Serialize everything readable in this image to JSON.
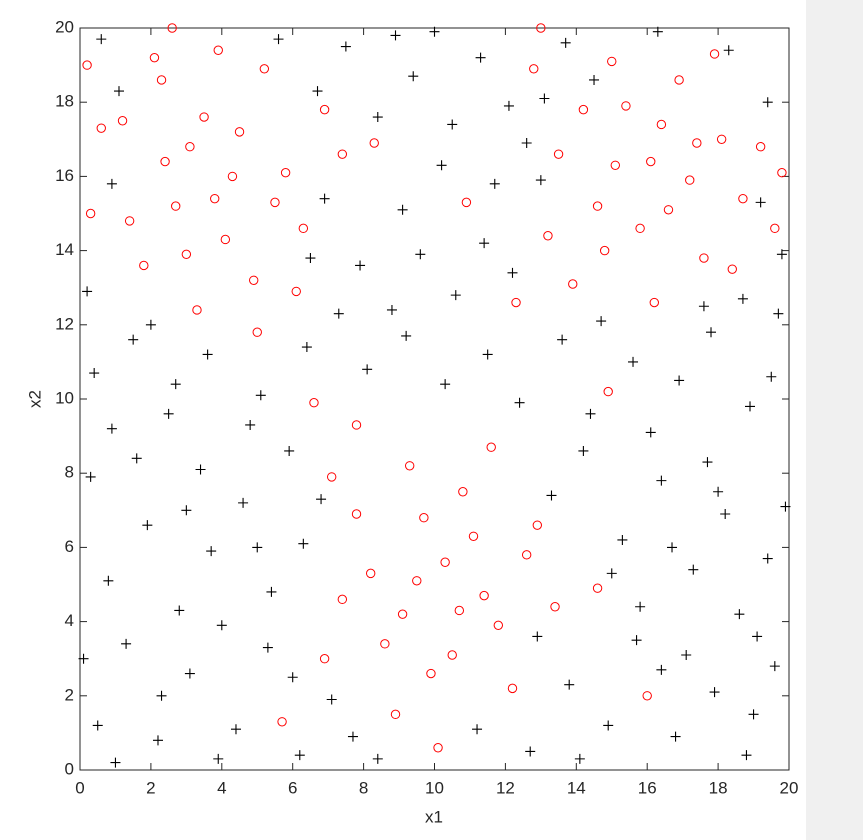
{
  "chart_data": {
    "type": "scatter",
    "xlabel": "x1",
    "ylabel": "x2",
    "xlim": [
      0,
      20
    ],
    "ylim": [
      0,
      20
    ],
    "xticks": [
      0,
      2,
      4,
      6,
      8,
      10,
      12,
      14,
      16,
      18,
      20
    ],
    "yticks": [
      0,
      2,
      4,
      6,
      8,
      10,
      12,
      14,
      16,
      18,
      20
    ],
    "grid": false,
    "series": [
      {
        "color": "#000000",
        "marker": "plus",
        "x": [
          0.5,
          1.3,
          2.2,
          3.1,
          4.4,
          5.3,
          6.2,
          7.1,
          8.4,
          11.2,
          12.7,
          13.8,
          14.9,
          15.7,
          16.8,
          17.9,
          18.8,
          19.6,
          0.8,
          1.9,
          2.8,
          3.7,
          4.6,
          5.4,
          6.3,
          0.3,
          1.6,
          2.5,
          3.4,
          4.8,
          5.9,
          6.8,
          13.3,
          14.2,
          15.3,
          16.4,
          17.3,
          18.2,
          19.4,
          15.8,
          17.1,
          18.6,
          19.9,
          14.4,
          16.1,
          17.7,
          18.9,
          19.5,
          0.4,
          1.5,
          2.7,
          3.6,
          5.1,
          6.4,
          7.3,
          8.1,
          9.2,
          10.3,
          11.5,
          12.4,
          13.6,
          14.7,
          15.6,
          16.9,
          17.8,
          18.7,
          19.7,
          7.9,
          8.8,
          9.6,
          10.6,
          11.4,
          12.2,
          9.1,
          10.2,
          11.7,
          12.6,
          8.4,
          9.4,
          10.5,
          11.3,
          12.1,
          7.5,
          6.7,
          8.9,
          10.0,
          0.2,
          0.9,
          1.1,
          0.6,
          2.0,
          5.6,
          6.5,
          6.9,
          13.1,
          13.7,
          14.5,
          16.3,
          18.3,
          19.4,
          19.8,
          19.2,
          17.6,
          13.0,
          0.1,
          1.0,
          3.9,
          6.0,
          7.7,
          12.9,
          14.1,
          16.4,
          19.0,
          2.3,
          4.0,
          0.9,
          3.0,
          5.0,
          15.0,
          18.0,
          19.1,
          16.7
        ],
        "y": [
          1.2,
          3.4,
          0.8,
          2.6,
          1.1,
          3.3,
          0.4,
          1.9,
          0.3,
          1.1,
          0.5,
          2.3,
          1.2,
          3.5,
          0.9,
          2.1,
          0.4,
          2.8,
          5.1,
          6.6,
          4.3,
          5.9,
          7.2,
          4.8,
          6.1,
          7.9,
          8.4,
          9.6,
          8.1,
          9.3,
          8.6,
          7.3,
          7.4,
          8.6,
          6.2,
          7.8,
          5.4,
          6.9,
          5.7,
          4.4,
          3.1,
          4.2,
          7.1,
          9.6,
          9.1,
          8.3,
          9.8,
          10.6,
          10.7,
          11.6,
          10.4,
          11.2,
          10.1,
          11.4,
          12.3,
          10.8,
          11.7,
          10.4,
          11.2,
          9.9,
          11.6,
          12.1,
          11.0,
          10.5,
          11.8,
          12.7,
          12.3,
          13.6,
          12.4,
          13.9,
          12.8,
          14.2,
          13.4,
          15.1,
          16.3,
          15.8,
          16.9,
          17.6,
          18.7,
          17.4,
          19.2,
          17.9,
          19.5,
          18.3,
          19.8,
          19.9,
          12.9,
          15.8,
          18.3,
          19.7,
          12.0,
          19.7,
          13.8,
          15.4,
          18.1,
          19.6,
          18.6,
          19.9,
          19.4,
          18.0,
          13.9,
          15.3,
          12.5,
          15.9,
          3.0,
          0.2,
          0.3,
          2.5,
          0.9,
          3.6,
          0.3,
          2.7,
          1.5,
          2.0,
          3.9,
          9.2,
          7.0,
          6.0,
          5.3,
          7.5,
          3.6,
          6.0
        ]
      },
      {
        "color": "#ff0000",
        "marker": "circle",
        "x": [
          1.2,
          2.3,
          3.1,
          3.8,
          4.5,
          5.2,
          5.8,
          4.1,
          2.7,
          1.8,
          3.3,
          4.9,
          6.3,
          6.9,
          0.6,
          2.1,
          3.9,
          5.5,
          4.3,
          3.5,
          2.4,
          1.4,
          6.1,
          0.3,
          7.4,
          3.0,
          5.0,
          14.2,
          15.1,
          16.4,
          17.2,
          15.8,
          14.6,
          13.9,
          16.9,
          18.1,
          18.7,
          17.6,
          16.2,
          15.0,
          13.5,
          12.8,
          19.2,
          16.6,
          15.4,
          17.9,
          14.8,
          18.4,
          19.6,
          13.2,
          16.1,
          17.4,
          8.2,
          9.1,
          10.3,
          11.4,
          9.7,
          10.8,
          8.6,
          9.9,
          11.8,
          12.6,
          7.4,
          7.8,
          10.5,
          11.1,
          12.2,
          9.3,
          13.4,
          6.9,
          8.9,
          10.1,
          11.6,
          12.9,
          14.6,
          7.1,
          9.5,
          10.7,
          7.8,
          8.3,
          10.9,
          12.3,
          6.6,
          14.9,
          19.8,
          0.2,
          2.6,
          13.0,
          5.7,
          16.0
        ],
        "y": [
          17.5,
          18.6,
          16.8,
          15.4,
          17.2,
          18.9,
          16.1,
          14.3,
          15.2,
          13.6,
          12.4,
          13.2,
          14.6,
          17.8,
          17.3,
          19.2,
          19.4,
          15.3,
          16.0,
          17.6,
          16.4,
          14.8,
          12.9,
          15.0,
          16.6,
          13.9,
          11.8,
          17.8,
          16.3,
          17.4,
          15.9,
          14.6,
          15.2,
          13.1,
          18.6,
          17.0,
          15.4,
          13.8,
          12.6,
          19.1,
          16.6,
          18.9,
          16.8,
          15.1,
          17.9,
          19.3,
          14.0,
          13.5,
          14.6,
          14.4,
          16.4,
          16.9,
          5.3,
          4.2,
          5.6,
          4.7,
          6.8,
          7.5,
          3.4,
          2.6,
          3.9,
          5.8,
          4.6,
          6.9,
          3.1,
          6.3,
          2.2,
          8.2,
          4.4,
          3.0,
          1.5,
          0.6,
          8.7,
          6.6,
          4.9,
          7.9,
          5.1,
          4.3,
          9.3,
          16.9,
          15.3,
          12.6,
          9.9,
          10.2,
          16.1,
          19.0,
          20.0,
          20.0,
          1.3,
          2.0
        ]
      }
    ]
  }
}
